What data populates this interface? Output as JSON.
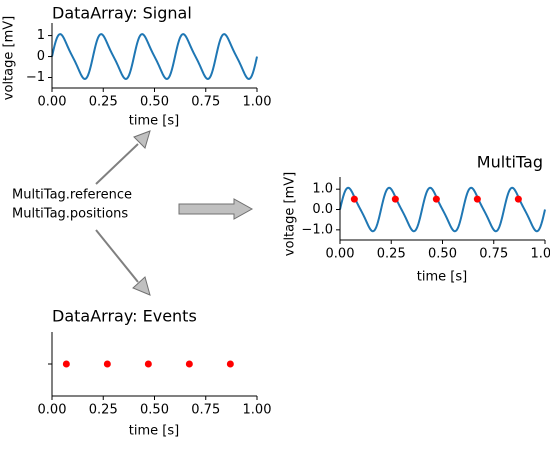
{
  "figure": {
    "diagram_text": [
      "MultiTag.reference",
      "MultiTag.positions"
    ],
    "colors": {
      "line": "#1f77b4",
      "marker": "#ff0000",
      "arrow_fill": "#c0c0c0",
      "arrow_edge": "#707070"
    }
  },
  "chart_data": [
    {
      "type": "line",
      "title": "DataArray: Signal",
      "xlabel": "time [s]",
      "ylabel": "voltage [mV]",
      "xlim": [
        0,
        1.0
      ],
      "ylim": [
        -1.5,
        1.6
      ],
      "xticks": [
        "0.00",
        "0.25",
        "0.50",
        "0.75",
        "1.00"
      ],
      "xtick_values": [
        0,
        0.25,
        0.5,
        0.75,
        1.0
      ],
      "yticks": [
        "1",
        "0",
        "−1"
      ],
      "ytick_values": [
        1,
        0,
        -1
      ],
      "grid": false,
      "series": [
        {
          "function": "sin(2*pi*5*t) + 0.2*sin(2*pi*10*t)",
          "t_range": [
            0,
            1.0
          ],
          "style": "line"
        }
      ]
    },
    {
      "type": "scatter",
      "title": "DataArray: Events",
      "xlabel": "time [s]",
      "ylabel": "",
      "xlim": [
        0,
        1.0
      ],
      "xticks": [
        "0.00",
        "0.25",
        "0.50",
        "0.75",
        "1.00"
      ],
      "xtick_values": [
        0,
        0.25,
        0.5,
        0.75,
        1.0
      ],
      "yticks": [
        ""
      ],
      "grid": false,
      "series": [
        {
          "x": [
            0.07,
            0.27,
            0.47,
            0.67,
            0.87
          ],
          "y": [
            0,
            0,
            0,
            0,
            0
          ],
          "style": "markers"
        }
      ]
    },
    {
      "type": "line",
      "title": "MultiTag",
      "xlabel": "time [s]",
      "ylabel": "voltage [mV]",
      "xlim": [
        0,
        1.0
      ],
      "ylim": [
        -1.5,
        1.6
      ],
      "xticks": [
        "0.00",
        "0.25",
        "0.50",
        "0.75",
        "1.00"
      ],
      "xtick_values": [
        0,
        0.25,
        0.5,
        0.75,
        1.0
      ],
      "yticks": [
        "1.0",
        "0.0",
        "−1.0"
      ],
      "ytick_values": [
        1,
        0,
        -1
      ],
      "grid": false,
      "series": [
        {
          "function": "sin(2*pi*5*t) + 0.2*sin(2*pi*10*t)",
          "t_range": [
            0,
            1.0
          ],
          "style": "line"
        },
        {
          "x": [
            0.07,
            0.27,
            0.47,
            0.67,
            0.87
          ],
          "y": [
            0.51,
            0.51,
            0.51,
            0.51,
            0.51
          ],
          "style": "markers"
        }
      ]
    }
  ]
}
